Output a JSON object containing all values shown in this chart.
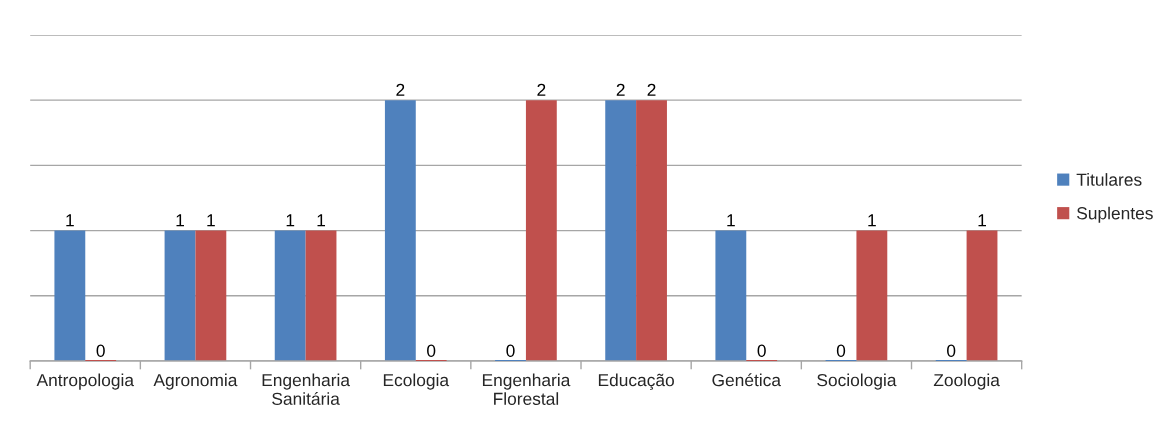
{
  "chart_data": {
    "type": "bar",
    "categories": [
      "Antropologia",
      "Agronomia",
      "Engenharia Sanitária",
      "Ecologia",
      "Engenharia Florestal",
      "Educação",
      "Genética",
      "Sociologia",
      "Zoologia"
    ],
    "series": [
      {
        "name": "Titulares",
        "color": "#4f81bd",
        "values": [
          1,
          1,
          1,
          2,
          0,
          2,
          1,
          0,
          0
        ]
      },
      {
        "name": "Suplentes",
        "color": "#c0504d",
        "values": [
          0,
          1,
          1,
          0,
          2,
          2,
          0,
          1,
          1
        ]
      }
    ],
    "ylim": [
      0,
      2.5
    ],
    "yticks": [
      {
        "value": 0,
        "label": null
      },
      {
        "value": 0.5,
        "label": null
      },
      {
        "value": 1,
        "label": null
      },
      {
        "value": 1.5,
        "label": null
      },
      {
        "value": 2,
        "label": null
      },
      {
        "value": 2.5,
        "label": null
      }
    ],
    "tick_labels": "x",
    "grid": "y",
    "legend": "right",
    "data_labels": true
  }
}
